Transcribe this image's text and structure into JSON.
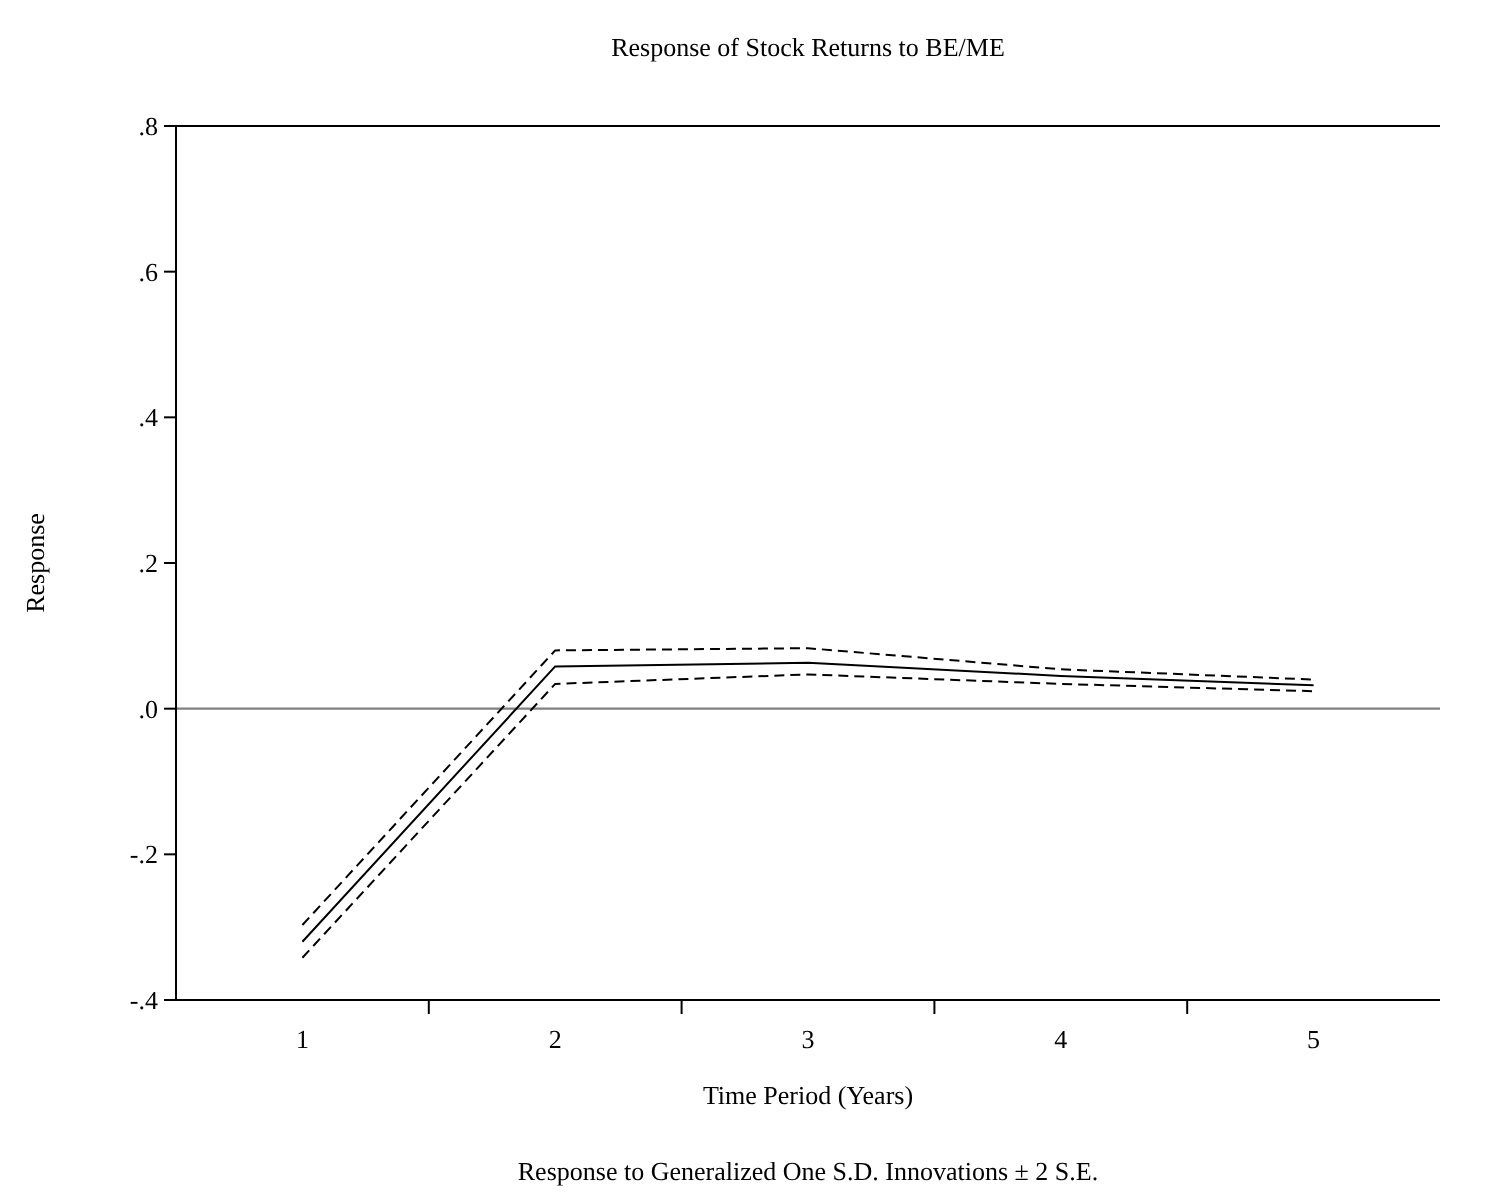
{
  "chart_data": {
    "type": "line",
    "title": "Response of Stock Returns to BE/ME",
    "xlabel": "Time Period (Years)",
    "ylabel": "Response",
    "annotations": [
      "Response to Generalized One S.D. Innovations ± 2 S.E."
    ],
    "categories": [
      "1",
      "2",
      "3",
      "4",
      "5"
    ],
    "series": [
      {
        "color": "#000000",
        "line_style": "dashed",
        "values": [
          -0.297,
          0.08,
          0.083,
          0.054,
          0.04
        ]
      },
      {
        "color": "#000000",
        "line_style": "solid",
        "values": [
          -0.32,
          0.058,
          0.063,
          0.045,
          0.032
        ]
      },
      {
        "color": "#000000",
        "line_style": "dashed",
        "values": [
          -0.342,
          0.034,
          0.047,
          0.034,
          0.024
        ]
      }
    ],
    "ylim": [
      -0.4,
      0.8
    ],
    "yticks": [
      {
        "value": -0.4,
        "label": "-.4"
      },
      {
        "value": -0.2,
        "label": "-.2"
      },
      {
        "value": 0,
        "label": ".0"
      },
      {
        "value": 0.2,
        "label": ".2"
      },
      {
        "value": 0.4,
        "label": ".4"
      },
      {
        "value": 0.6,
        "label": ".6"
      },
      {
        "value": 0.8,
        "label": ".8"
      }
    ],
    "ref_lines": [
      {
        "axis": "y",
        "value": 0,
        "color": "#808080"
      }
    ],
    "grid": false,
    "marker": "none"
  }
}
